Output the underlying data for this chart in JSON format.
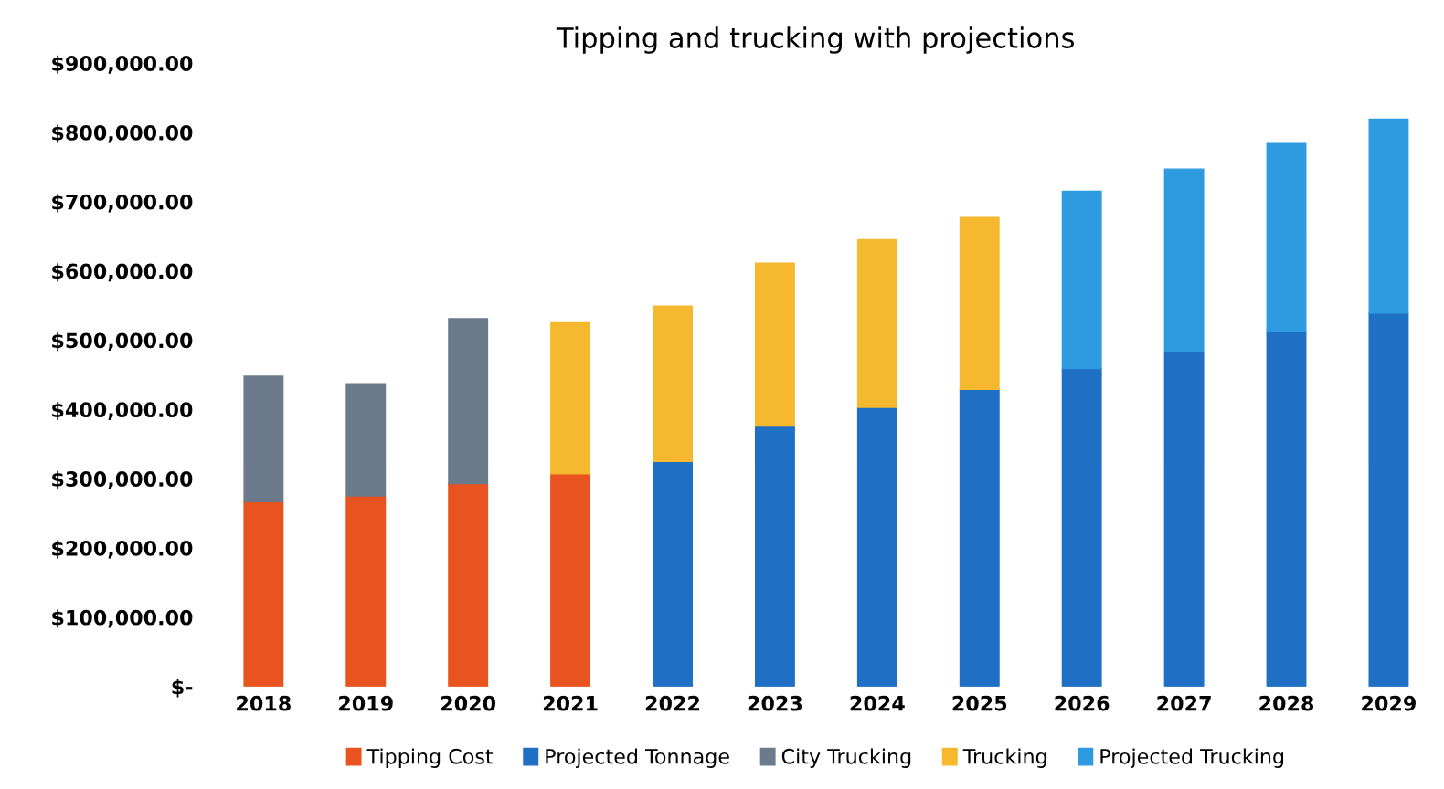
{
  "chart_data": {
    "type": "bar",
    "title": "Tipping and trucking with projections",
    "stacked": true,
    "categories": [
      "2018",
      "2019",
      "2020",
      "2021",
      "2022",
      "2023",
      "2024",
      "2025",
      "2026",
      "2027",
      "2028",
      "2029"
    ],
    "series": [
      {
        "name": "Tipping Cost",
        "color": "#e8531f",
        "values": [
          267000,
          275000,
          293000,
          307000,
          null,
          null,
          null,
          null,
          null,
          null,
          null,
          null
        ]
      },
      {
        "name": "Projected Tonnage",
        "color": "#1f6fc4",
        "values": [
          null,
          null,
          null,
          null,
          325000,
          376000,
          403000,
          429000,
          459000,
          483000,
          512000,
          539000
        ]
      },
      {
        "name": "City Trucking",
        "color": "#6b7b8c",
        "values": [
          181000,
          162000,
          238000,
          null,
          null,
          null,
          null,
          null,
          null,
          null,
          null,
          null
        ]
      },
      {
        "name": "Trucking",
        "color": "#f5b82e",
        "values": [
          null,
          null,
          null,
          218000,
          224000,
          235000,
          242000,
          248000,
          null,
          null,
          null,
          null
        ]
      },
      {
        "name": "Projected Trucking",
        "color": "#2e9be0",
        "values": [
          null,
          null,
          null,
          null,
          null,
          null,
          null,
          null,
          256000,
          264000,
          272000,
          280000
        ]
      }
    ],
    "ylim": [
      0,
      900000
    ],
    "yticks": [
      {
        "value": 0,
        "label": "$-"
      },
      {
        "value": 100000,
        "label": "$100,000.00"
      },
      {
        "value": 200000,
        "label": "$200,000.00"
      },
      {
        "value": 300000,
        "label": "$300,000.00"
      },
      {
        "value": 400000,
        "label": "$400,000.00"
      },
      {
        "value": 500000,
        "label": "$500,000.00"
      },
      {
        "value": 600000,
        "label": "$600,000.00"
      },
      {
        "value": 700000,
        "label": "$700,000.00"
      },
      {
        "value": 800000,
        "label": "$800,000.00"
      },
      {
        "value": 900000,
        "label": "$900,000.00"
      }
    ],
    "grid": false,
    "legend": "bottom"
  }
}
